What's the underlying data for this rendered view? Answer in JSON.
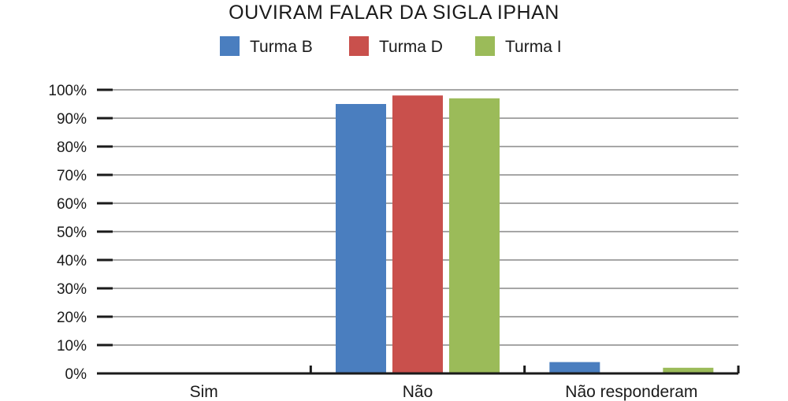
{
  "chart_data": {
    "type": "bar",
    "title": "OUVIRAM FALAR DA SIGLA IPHAN",
    "xlabel": "",
    "ylabel": "",
    "categories": [
      "Sim",
      "Não",
      "Não responderam"
    ],
    "series": [
      {
        "name": "Turma B",
        "color": "#4a7ebf",
        "values": [
          0,
          95,
          4
        ]
      },
      {
        "name": "Turma D",
        "color": "#c9504c",
        "values": [
          0,
          98,
          0
        ]
      },
      {
        "name": "Turma I",
        "color": "#9bbb59",
        "values": [
          0,
          97,
          2
        ]
      }
    ],
    "ylim": [
      0,
      100
    ],
    "yticks": [
      "0%",
      "10%",
      "20%",
      "30%",
      "40%",
      "50%",
      "60%",
      "70%",
      "80%",
      "90%",
      "100%"
    ],
    "grid": true,
    "legend_position": "top-center",
    "gridline_color": "#a6a6a6",
    "axis_color": "#1a1a1a"
  }
}
